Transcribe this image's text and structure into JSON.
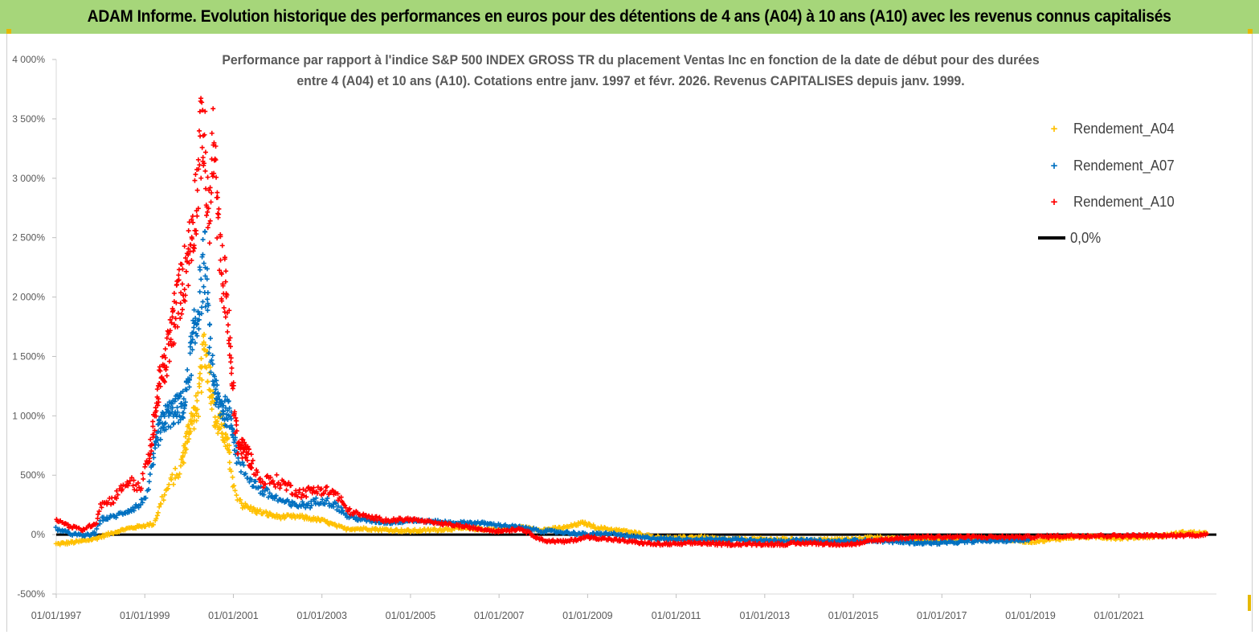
{
  "banner": {
    "title": "ADAM Informe. Evolution historique des performances en euros pour des détentions de 4 ans (A04) à 10 ans (A10) avec les revenus connus capitalisés",
    "color": "#a6d67a"
  },
  "chart_data": {
    "type": "scatter",
    "title_line1": "Performance par rapport à l'indice S&P 500 INDEX GROSS TR  du placement Ventas Inc en fonction de la date de début pour des durées",
    "title_line2": "entre 4 (A04) et 10 ans (A10).  Cotations entre janv. 1997 et févr. 2026. Revenus  CAPITALISES depuis janv. 1999.",
    "ylim": [
      -500,
      4000
    ],
    "yticks": [
      -500,
      0,
      500,
      1000,
      1500,
      2000,
      2500,
      3000,
      3500,
      4000
    ],
    "ytick_labels": [
      "-500%",
      "0%",
      "500%",
      "1 000%",
      "1 500%",
      "2 000%",
      "2 500%",
      "3 000%",
      "3 500%",
      "4 000%"
    ],
    "xlim": [
      1997.0,
      2023.2
    ],
    "xticks": [
      1997,
      1999,
      2001,
      2003,
      2005,
      2007,
      2009,
      2011,
      2013,
      2015,
      2017,
      2019,
      2021
    ],
    "xtick_labels": [
      "01/01/1997",
      "01/01/1999",
      "01/01/2001",
      "01/01/2003",
      "01/01/2005",
      "01/01/2007",
      "01/01/2009",
      "01/01/2011",
      "01/01/2013",
      "01/01/2015",
      "01/01/2017",
      "01/01/2019",
      "01/01/2021"
    ],
    "grid": "none",
    "legend_position": "top-right",
    "series": [
      {
        "name": "Rendement_A04",
        "color": "#ffc000",
        "marker": "+",
        "points": [
          [
            1997.0,
            -80
          ],
          [
            1997.5,
            -60
          ],
          [
            1997.8,
            -40
          ],
          [
            1998.0,
            -20
          ],
          [
            1998.3,
            20
          ],
          [
            1998.6,
            50
          ],
          [
            1998.9,
            70
          ],
          [
            1999.2,
            90
          ],
          [
            1999.4,
            300
          ],
          [
            1999.6,
            450
          ],
          [
            1999.8,
            550
          ],
          [
            2000.0,
            900
          ],
          [
            2000.2,
            1100
          ],
          [
            2000.35,
            1600
          ],
          [
            2000.5,
            1250
          ],
          [
            2000.6,
            950
          ],
          [
            2000.75,
            900
          ],
          [
            2000.9,
            700
          ],
          [
            2001.0,
            400
          ],
          [
            2001.2,
            250
          ],
          [
            2001.5,
            200
          ],
          [
            2002.0,
            150
          ],
          [
            2002.5,
            150
          ],
          [
            2003.0,
            120
          ],
          [
            2003.5,
            50
          ],
          [
            2004.0,
            50
          ],
          [
            2004.5,
            40
          ],
          [
            2005.0,
            30
          ],
          [
            2005.5,
            40
          ],
          [
            2006.0,
            50
          ],
          [
            2006.5,
            50
          ],
          [
            2007.0,
            40
          ],
          [
            2007.5,
            60
          ],
          [
            2008.0,
            40
          ],
          [
            2008.5,
            60
          ],
          [
            2008.9,
            100
          ],
          [
            2009.2,
            60
          ],
          [
            2009.6,
            40
          ],
          [
            2010.0,
            20
          ],
          [
            2010.5,
            -20
          ],
          [
            2011.0,
            -30
          ],
          [
            2011.5,
            -20
          ],
          [
            2012.0,
            -40
          ],
          [
            2012.5,
            -40
          ],
          [
            2013.0,
            -40
          ],
          [
            2013.5,
            -40
          ],
          [
            2014.0,
            -50
          ],
          [
            2014.5,
            -40
          ],
          [
            2015.0,
            -40
          ],
          [
            2015.5,
            -20
          ],
          [
            2016.0,
            -40
          ],
          [
            2016.5,
            -50
          ],
          [
            2017.0,
            -40
          ],
          [
            2017.5,
            -40
          ],
          [
            2018.0,
            -40
          ],
          [
            2018.5,
            -40
          ],
          [
            2019.0,
            -60
          ],
          [
            2019.5,
            -40
          ],
          [
            2020.0,
            -20
          ],
          [
            2020.5,
            -20
          ],
          [
            2021.0,
            -30
          ],
          [
            2021.5,
            -20
          ],
          [
            2022.0,
            -10
          ],
          [
            2022.5,
            20
          ],
          [
            2023.0,
            10
          ]
        ]
      },
      {
        "name": "Rendement_A07",
        "color": "#0070c0",
        "marker": "+",
        "points": [
          [
            1997.0,
            50
          ],
          [
            1997.3,
            10
          ],
          [
            1997.6,
            -10
          ],
          [
            1997.9,
            10
          ],
          [
            1998.0,
            130
          ],
          [
            1998.3,
            150
          ],
          [
            1998.6,
            200
          ],
          [
            1998.9,
            250
          ],
          [
            1999.1,
            400
          ],
          [
            1999.3,
            850
          ],
          [
            1999.5,
            1000
          ],
          [
            1999.7,
            1050
          ],
          [
            1999.9,
            1100
          ],
          [
            2000.0,
            1400
          ],
          [
            2000.15,
            1750
          ],
          [
            2000.35,
            2300
          ],
          [
            2000.5,
            1450
          ],
          [
            2000.65,
            1100
          ],
          [
            2000.8,
            1050
          ],
          [
            2000.95,
            1000
          ],
          [
            2001.1,
            600
          ],
          [
            2001.3,
            500
          ],
          [
            2001.6,
            380
          ],
          [
            2002.0,
            300
          ],
          [
            2002.3,
            250
          ],
          [
            2002.7,
            250
          ],
          [
            2003.0,
            300
          ],
          [
            2003.3,
            250
          ],
          [
            2003.6,
            150
          ],
          [
            2004.0,
            120
          ],
          [
            2004.5,
            100
          ],
          [
            2005.0,
            120
          ],
          [
            2005.5,
            110
          ],
          [
            2006.0,
            100
          ],
          [
            2006.5,
            100
          ],
          [
            2007.0,
            80
          ],
          [
            2007.5,
            60
          ],
          [
            2008.0,
            30
          ],
          [
            2008.5,
            20
          ],
          [
            2009.0,
            0
          ],
          [
            2009.5,
            10
          ],
          [
            2010.0,
            -20
          ],
          [
            2010.5,
            -30
          ],
          [
            2011.0,
            -40
          ],
          [
            2011.5,
            -40
          ],
          [
            2012.0,
            -40
          ],
          [
            2012.5,
            -40
          ],
          [
            2013.0,
            -50
          ],
          [
            2013.5,
            -50
          ],
          [
            2014.0,
            -50
          ],
          [
            2014.5,
            -60
          ],
          [
            2015.0,
            -50
          ],
          [
            2015.5,
            -50
          ],
          [
            2016.0,
            -60
          ],
          [
            2016.5,
            -70
          ],
          [
            2017.0,
            -70
          ],
          [
            2017.5,
            -60
          ],
          [
            2018.0,
            -50
          ],
          [
            2018.5,
            -50
          ],
          [
            2019.0,
            -40
          ]
        ]
      },
      {
        "name": "Rendement_A10",
        "color": "#ff0000",
        "marker": "+",
        "points": [
          [
            1997.0,
            130
          ],
          [
            1997.3,
            70
          ],
          [
            1997.6,
            40
          ],
          [
            1997.9,
            100
          ],
          [
            1998.0,
            250
          ],
          [
            1998.3,
            300
          ],
          [
            1998.6,
            450
          ],
          [
            1998.9,
            400
          ],
          [
            1999.1,
            650
          ],
          [
            1999.3,
            1200
          ],
          [
            1999.5,
            1500
          ],
          [
            1999.7,
            1900
          ],
          [
            1999.9,
            2200
          ],
          [
            2000.0,
            2400
          ],
          [
            2000.15,
            2800
          ],
          [
            2000.3,
            3500
          ],
          [
            2000.45,
            2600
          ],
          [
            2000.55,
            3300
          ],
          [
            2000.7,
            2300
          ],
          [
            2000.85,
            2000
          ],
          [
            2000.95,
            1400
          ],
          [
            2001.1,
            750
          ],
          [
            2001.3,
            700
          ],
          [
            2001.6,
            450
          ],
          [
            2002.0,
            450
          ],
          [
            2002.5,
            350
          ],
          [
            2003.0,
            380
          ],
          [
            2003.3,
            350
          ],
          [
            2003.6,
            200
          ],
          [
            2004.0,
            150
          ],
          [
            2004.5,
            120
          ],
          [
            2005.0,
            130
          ],
          [
            2005.5,
            100
          ],
          [
            2006.0,
            80
          ],
          [
            2006.5,
            50
          ],
          [
            2007.0,
            30
          ],
          [
            2007.5,
            50
          ],
          [
            2008.0,
            -50
          ],
          [
            2008.5,
            -60
          ],
          [
            2009.0,
            -20
          ],
          [
            2009.5,
            -40
          ],
          [
            2010.0,
            -60
          ],
          [
            2010.5,
            -80
          ],
          [
            2011.0,
            -80
          ],
          [
            2011.5,
            -70
          ],
          [
            2012.0,
            -80
          ],
          [
            2012.5,
            -80
          ],
          [
            2013.0,
            -80
          ],
          [
            2013.5,
            -80
          ],
          [
            2014.0,
            -70
          ],
          [
            2014.5,
            -80
          ],
          [
            2015.0,
            -80
          ],
          [
            2015.5,
            -50
          ],
          [
            2016.0,
            -30
          ],
          [
            2016.5,
            -20
          ],
          [
            2017.0,
            -20
          ],
          [
            2018.0,
            -20
          ],
          [
            2019.0,
            -20
          ],
          [
            2020.0,
            -10
          ],
          [
            2021.0,
            -10
          ],
          [
            2022.0,
            -10
          ],
          [
            2023.0,
            0
          ]
        ]
      },
      {
        "name": "0,0%",
        "color": "#000000",
        "marker": "line",
        "points": [
          [
            1997.0,
            0
          ],
          [
            2023.2,
            0
          ]
        ]
      }
    ]
  }
}
